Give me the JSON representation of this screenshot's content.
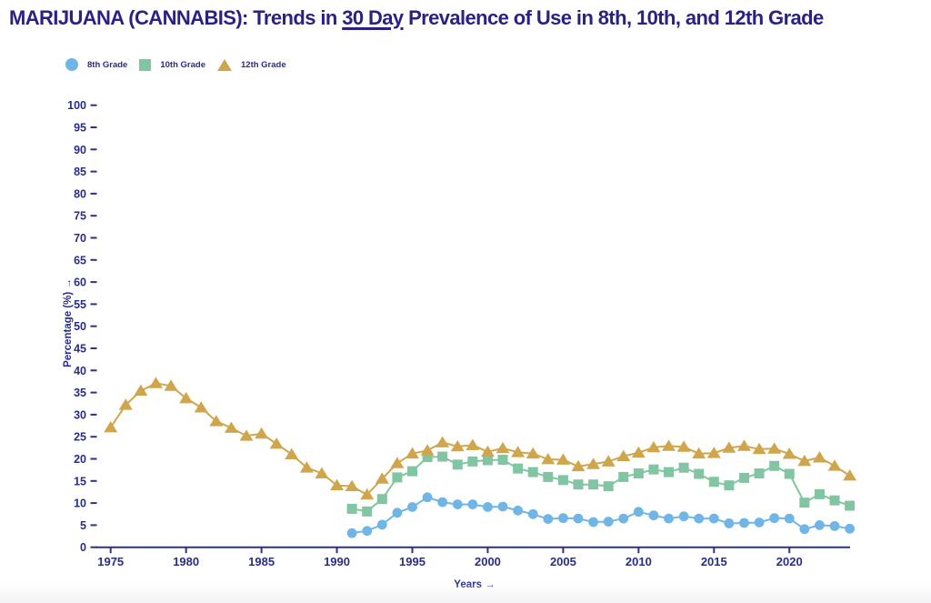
{
  "page": {
    "title_prefix": "MARIJUANA (CANNABIS): Trends in ",
    "title_underlined": "30 Day",
    "title_suffix": " Prevalence of Use in 8th, 10th, and 12th Grade"
  },
  "colors": {
    "navy_text": "#2a2283",
    "axis_navy": "#2e3287",
    "grade8_blue": "#6fb5e6",
    "grade10_green": "#81c5a2",
    "grade12_gold": "#cfa64b"
  },
  "legend": [
    {
      "label": "8th Grade",
      "marker": "circle",
      "color": "#6fb5e6"
    },
    {
      "label": "10th Grade",
      "marker": "square",
      "color": "#81c5a2"
    },
    {
      "label": "12th Grade",
      "marker": "triangle",
      "color": "#cfa64b"
    }
  ],
  "chart_data": {
    "type": "line",
    "title": "MARIJUANA (CANNABIS): Trends in 30 Day Prevalence of Use in 8th, 10th, and 12th Grade",
    "xlabel": "Years →",
    "ylabel": "Percentage (%) →",
    "xlim": [
      1975,
      2024
    ],
    "ylim": [
      0,
      100
    ],
    "grid": false,
    "legend_position": "top-left",
    "x_ticks": [
      1975,
      1980,
      1985,
      1990,
      1995,
      2000,
      2005,
      2010,
      2015,
      2020
    ],
    "y_ticks": [
      0,
      5,
      10,
      15,
      20,
      25,
      30,
      35,
      40,
      45,
      50,
      55,
      60,
      65,
      70,
      75,
      80,
      85,
      90,
      95,
      100
    ],
    "series": [
      {
        "name": "8th Grade",
        "marker": "circle",
        "color": "#6fb5e6",
        "start_year": 1991,
        "values": [
          3.2,
          3.7,
          5.1,
          7.8,
          9.1,
          11.3,
          10.2,
          9.7,
          9.7,
          9.1,
          9.2,
          8.3,
          7.5,
          6.4,
          6.6,
          6.5,
          5.7,
          5.8,
          6.5,
          8.0,
          7.2,
          6.5,
          7.0,
          6.5,
          6.5,
          5.4,
          5.5,
          5.6,
          6.6,
          6.5,
          4.1,
          5.0,
          4.8,
          4.2
        ]
      },
      {
        "name": "10th Grade",
        "marker": "square",
        "color": "#81c5a2",
        "start_year": 1991,
        "values": [
          8.7,
          8.1,
          10.9,
          15.8,
          17.2,
          20.4,
          20.5,
          18.7,
          19.4,
          19.7,
          19.8,
          17.8,
          17.0,
          15.9,
          15.2,
          14.2,
          14.2,
          13.8,
          15.9,
          16.7,
          17.6,
          17.0,
          18.0,
          16.6,
          14.8,
          14.0,
          15.7,
          16.7,
          18.4,
          16.6,
          10.1,
          12.0,
          10.6,
          9.4
        ]
      },
      {
        "name": "12th Grade",
        "marker": "triangle",
        "color": "#cfa64b",
        "start_year": 1975,
        "values": [
          27.1,
          32.2,
          35.4,
          37.1,
          36.5,
          33.7,
          31.6,
          28.5,
          27.0,
          25.2,
          25.7,
          23.4,
          21.0,
          18.0,
          16.7,
          14.0,
          13.8,
          11.9,
          15.5,
          19.0,
          21.2,
          21.9,
          23.7,
          22.8,
          23.1,
          21.6,
          22.4,
          21.5,
          21.2,
          19.9,
          19.8,
          18.3,
          18.8,
          19.4,
          20.6,
          21.4,
          22.6,
          22.9,
          22.7,
          21.2,
          21.3,
          22.5,
          22.9,
          22.2,
          22.3,
          21.1,
          19.5,
          20.3,
          18.4,
          16.2
        ]
      }
    ]
  }
}
